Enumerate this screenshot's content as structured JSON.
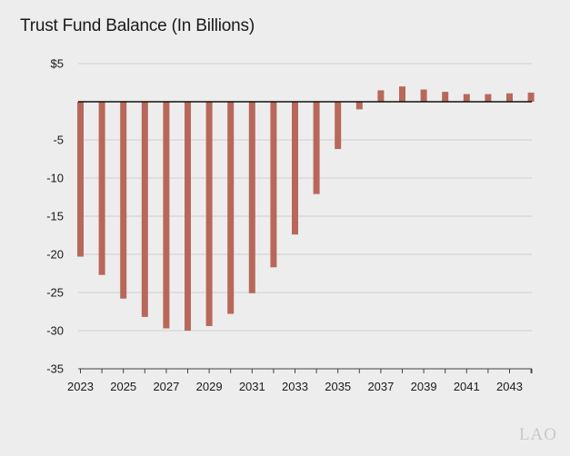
{
  "chart_data": {
    "type": "bar",
    "title": "Trust Fund Balance (In Billions)",
    "xlabel": "",
    "ylabel": "",
    "ylim": [
      -35,
      5
    ],
    "y_ticks": [
      5,
      0,
      -5,
      -10,
      -15,
      -20,
      -25,
      -30,
      -35
    ],
    "y_tick_labels": [
      "$5",
      "",
      "-5",
      "-10",
      "-15",
      "-20",
      "-25",
      "-30",
      "-35"
    ],
    "x_tick_labels": [
      "2023",
      "2025",
      "2027",
      "2029",
      "2031",
      "2033",
      "2035",
      "2037",
      "2039",
      "2041",
      "2043"
    ],
    "grid": true,
    "legend": "none",
    "bar_color": "#b8685a",
    "categories": [
      "2023",
      "2024",
      "2025",
      "2026",
      "2027",
      "2028",
      "2029",
      "2030",
      "2031",
      "2032",
      "2033",
      "2034",
      "2035",
      "2036",
      "2037",
      "2038",
      "2039",
      "2040",
      "2041",
      "2042",
      "2043",
      "2044"
    ],
    "values": [
      -20.3,
      -22.7,
      -25.8,
      -28.2,
      -29.7,
      -30.0,
      -29.4,
      -27.8,
      -25.1,
      -21.7,
      -17.4,
      -12.1,
      -6.2,
      -1.0,
      1.5,
      2.0,
      1.6,
      1.3,
      1.0,
      1.0,
      1.1,
      1.2
    ]
  },
  "logo": {
    "text": "LAO"
  }
}
